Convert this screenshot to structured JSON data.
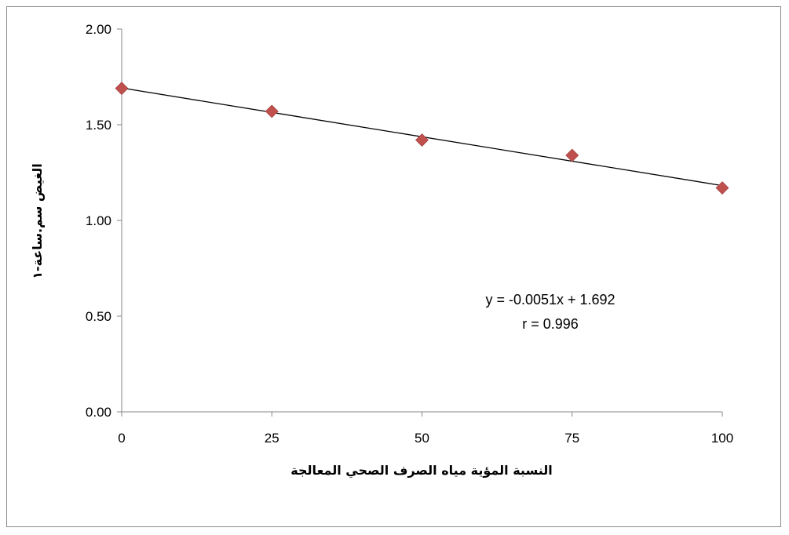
{
  "chart_data": {
    "type": "scatter",
    "title": "",
    "xlabel": "النسبة المؤية مياه الصرف الصحي المعالجة",
    "ylabel": "الغيض سم.ساعة-١",
    "xlim": [
      0,
      100
    ],
    "ylim": [
      0,
      2
    ],
    "x_ticks": [
      0,
      25,
      50,
      75,
      100
    ],
    "x_tick_labels": [
      "0",
      "25",
      "50",
      "75",
      "100"
    ],
    "y_ticks": [
      0,
      0.5,
      1,
      1.5,
      2
    ],
    "y_tick_labels": [
      "0.00",
      "0.50",
      "1.00",
      "1.50",
      "2.00"
    ],
    "grid": false,
    "legend": "none",
    "series": [
      {
        "marker": "diamond",
        "color": "#C0504D",
        "x": [
          0,
          25,
          50,
          75,
          100
        ],
        "y": [
          1.69,
          1.57,
          1.42,
          1.34,
          1.17
        ]
      }
    ],
    "trendline": {
      "type": "linear",
      "slope": -0.0051,
      "intercept": 1.692,
      "color": "#000000",
      "equation_label": "y = -0.0051x + 1.692",
      "r_label": "r = 0.996"
    }
  }
}
